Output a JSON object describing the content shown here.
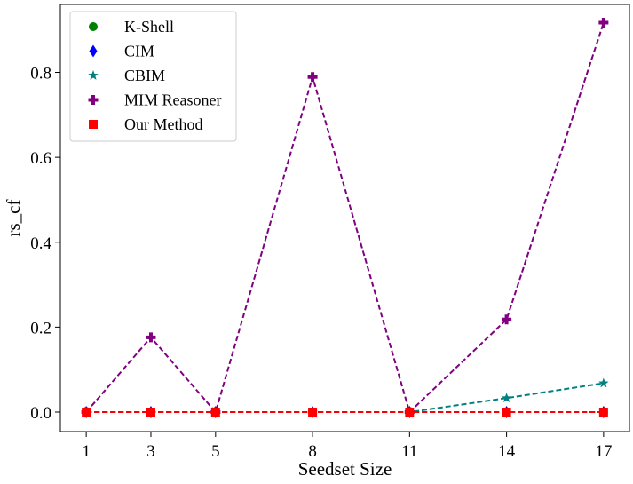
{
  "chart_data": {
    "type": "line",
    "title": "",
    "xlabel": "Seedset Size",
    "ylabel": "rs_cf",
    "x": [
      1,
      3,
      5,
      8,
      11,
      14,
      17
    ],
    "xticks": [
      "1",
      "3",
      "5",
      "8",
      "11",
      "14",
      "17"
    ],
    "yticks": [
      "0.0",
      "0.2",
      "0.4",
      "0.6",
      "0.8"
    ],
    "xlim": [
      0.2,
      17.8
    ],
    "ylim": [
      -0.046,
      0.96
    ],
    "grid": false,
    "legend_position": "top-left",
    "series": [
      {
        "name": "K-Shell",
        "color": "#008000",
        "marker": "circle",
        "values": [
          0.0,
          0.0,
          0.0,
          0.0,
          0.0,
          0.0,
          0.0
        ]
      },
      {
        "name": "CIM",
        "color": "#0000ff",
        "marker": "diamond",
        "values": [
          0.0,
          0.0,
          0.0,
          0.0,
          0.0,
          0.0,
          0.0
        ]
      },
      {
        "name": "CBIM",
        "color": "#008080",
        "marker": "star",
        "values": [
          0.0,
          0.0,
          0.0,
          0.0,
          0.0,
          0.033,
          0.068
        ]
      },
      {
        "name": "MIM Reasoner",
        "color": "#800080",
        "marker": "plus",
        "values": [
          0.0,
          0.176,
          0.0,
          0.789,
          0.0,
          0.218,
          0.917
        ]
      },
      {
        "name": "Our Method",
        "color": "#ff0000",
        "marker": "square",
        "values": [
          0.0,
          0.0,
          0.0,
          0.0,
          0.0,
          0.0,
          0.0
        ]
      }
    ]
  }
}
